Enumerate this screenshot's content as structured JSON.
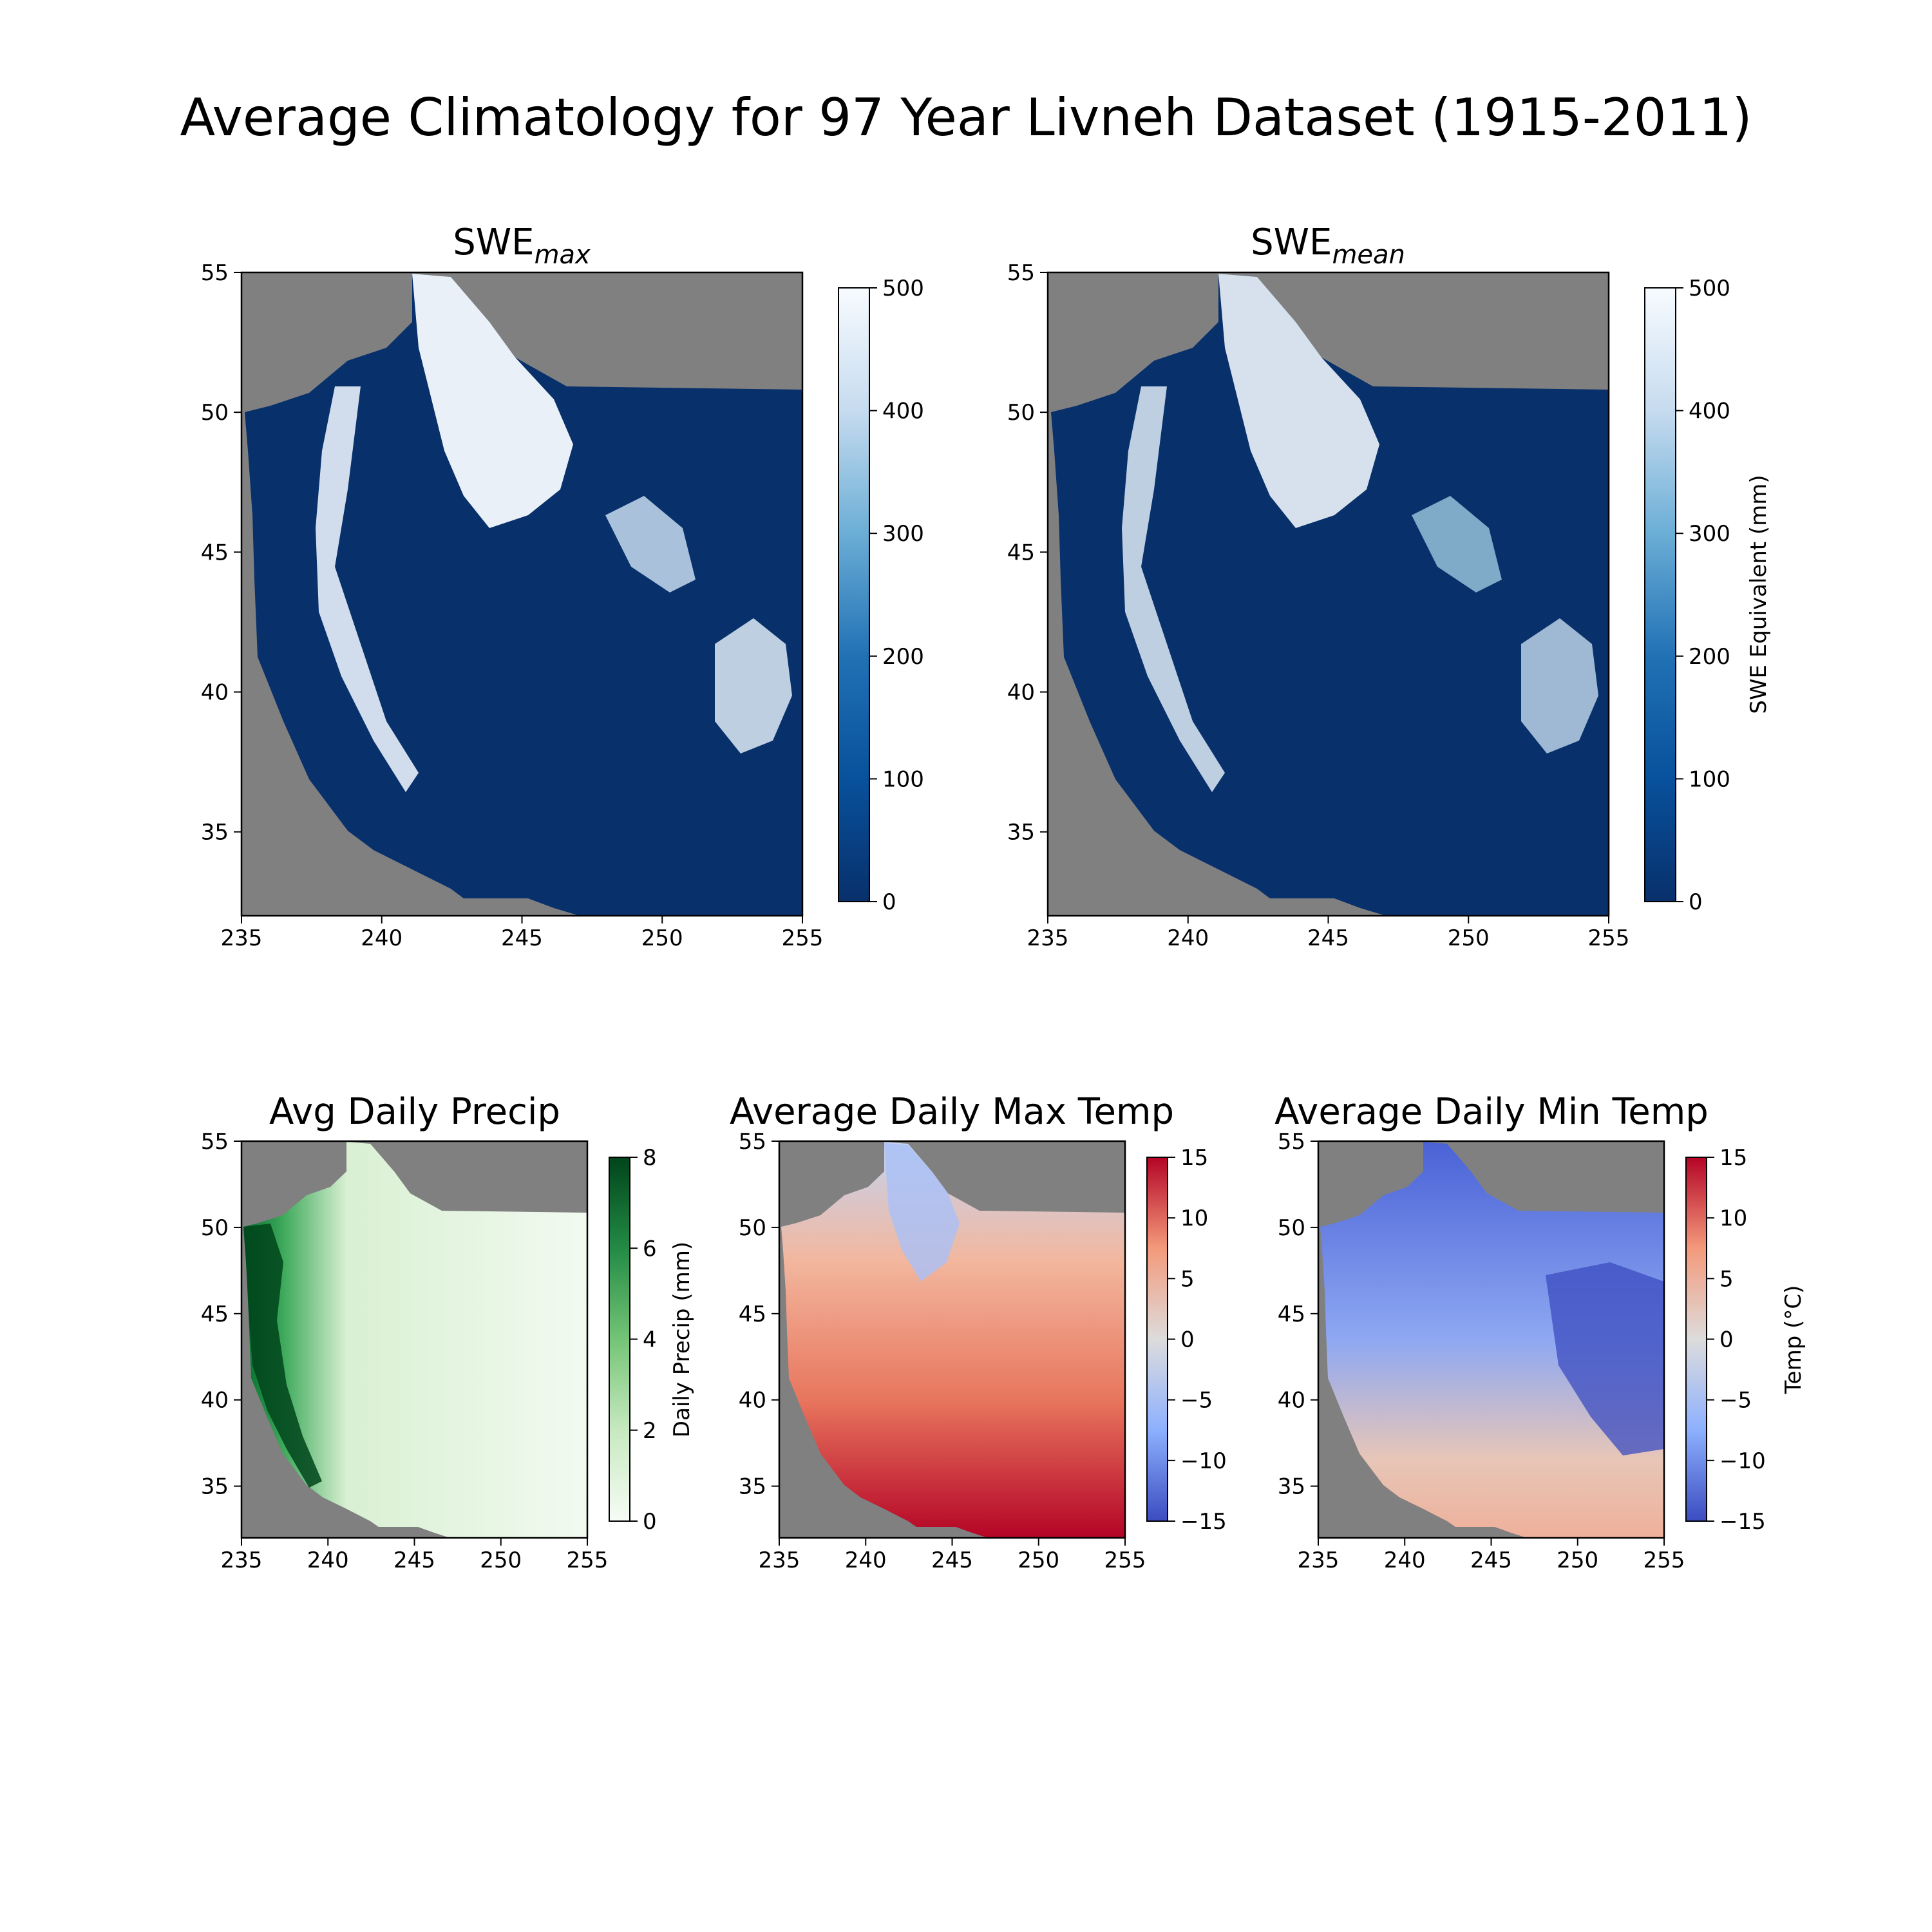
{
  "figure": {
    "suptitle": "Average Climatology for 97 Year Livneh Dataset (1915-2011)"
  },
  "colors": {
    "mask_gray": "#808080",
    "blues_dark": "#08306b",
    "blues_light": "#f7fbff",
    "greens_dark": "#00441b",
    "greens_light": "#f7fcf5",
    "coolwarm_blue": "#3b4cc0",
    "coolwarm_mid": "#dddddd",
    "coolwarm_red": "#b40426"
  },
  "chart_data": [
    {
      "type": "heatmap",
      "title_main": "SWE",
      "title_sub": "max",
      "x_ticks": [
        "235",
        "240",
        "245",
        "250",
        "255"
      ],
      "y_ticks": [
        "35",
        "40",
        "45",
        "50",
        "55"
      ],
      "xlim": [
        235,
        255
      ],
      "ylim": [
        32,
        55
      ],
      "colormap": "Blues_r",
      "colorbar": {
        "range": [
          0,
          500
        ],
        "ticks": [
          "0",
          "100",
          "200",
          "300",
          "400",
          "500"
        ],
        "label": ""
      }
    },
    {
      "type": "heatmap",
      "title_main": "SWE",
      "title_sub": "mean",
      "x_ticks": [
        "235",
        "240",
        "245",
        "250",
        "255"
      ],
      "y_ticks": [
        "35",
        "40",
        "45",
        "50",
        "55"
      ],
      "xlim": [
        235,
        255
      ],
      "ylim": [
        32,
        55
      ],
      "colormap": "Blues_r",
      "colorbar": {
        "range": [
          0,
          500
        ],
        "ticks": [
          "0",
          "100",
          "200",
          "300",
          "400",
          "500"
        ],
        "label": "SWE Equivalent (mm)"
      }
    },
    {
      "type": "heatmap",
      "title_main": "Avg Daily Precip",
      "title_sub": "",
      "x_ticks": [
        "235",
        "240",
        "245",
        "250",
        "255"
      ],
      "y_ticks": [
        "35",
        "40",
        "45",
        "50",
        "55"
      ],
      "xlim": [
        235,
        255
      ],
      "ylim": [
        32,
        55
      ],
      "colormap": "Greens",
      "colorbar": {
        "range": [
          0,
          8
        ],
        "ticks": [
          "0",
          "2",
          "4",
          "6",
          "8"
        ],
        "label": "Daily Precip (mm)"
      }
    },
    {
      "type": "heatmap",
      "title_main": "Average Daily Max Temp",
      "title_sub": "",
      "x_ticks": [
        "235",
        "240",
        "245",
        "250",
        "255"
      ],
      "y_ticks": [
        "35",
        "40",
        "45",
        "50",
        "55"
      ],
      "xlim": [
        235,
        255
      ],
      "ylim": [
        32,
        55
      ],
      "colormap": "coolwarm",
      "colorbar": {
        "range": [
          -15,
          15
        ],
        "ticks": [
          "−15",
          "−10",
          "−5",
          "0",
          "5",
          "10",
          "15"
        ],
        "label": ""
      }
    },
    {
      "type": "heatmap",
      "title_main": "Average Daily Min Temp",
      "title_sub": "",
      "x_ticks": [
        "235",
        "240",
        "245",
        "250",
        "255"
      ],
      "y_ticks": [
        "35",
        "40",
        "45",
        "50",
        "55"
      ],
      "xlim": [
        235,
        255
      ],
      "ylim": [
        32,
        55
      ],
      "colormap": "coolwarm",
      "colorbar": {
        "range": [
          -15,
          15
        ],
        "ticks": [
          "−15",
          "−10",
          "−5",
          "0",
          "5",
          "10",
          "15"
        ],
        "label": "Temp (°C)"
      }
    }
  ]
}
